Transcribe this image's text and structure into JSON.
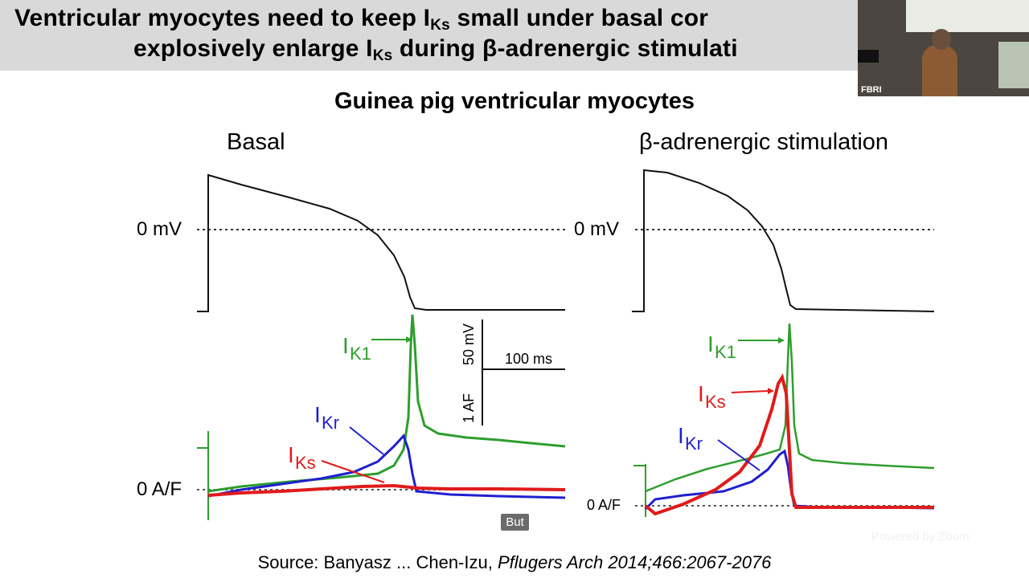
{
  "slide": {
    "title_line1_pre": "Ventricular myocytes need to keep I",
    "title_line1_sub": "Ks",
    "title_line1_post": " small under basal cor",
    "title_line2_pre": "explosively enlarge I",
    "title_line2_sub": "Ks",
    "title_line2_post": " during β-adrenergic stimulati",
    "subtitle": "Guinea pig ventricular myocytes",
    "panel_left_label": "Basal",
    "panel_right_label": "β-adrenergic stimulation",
    "source_prefix": "Source: Banyasz ... Chen-Izu, ",
    "source_citation": "Pflugers Arch 2014;466:2067-2076"
  },
  "figure": {
    "mv_label": "0 mV",
    "af_label": "0 A/F",
    "scale_mv": "50 mV",
    "scale_af": "1 AF",
    "scale_time": "100 ms",
    "currents": {
      "ik1": "K1",
      "ikr": "Kr",
      "iks": "Ks",
      "i_prefix": "I"
    },
    "colors": {
      "ik1": "#2e9e2e",
      "ikr": "#1f1fd0",
      "iks": "#e01b1b",
      "ap": "#111111"
    }
  },
  "overlay": {
    "caption_tag": "But",
    "zoom_watermark": "Powered by Zoom",
    "video_label": "FBRI"
  }
}
